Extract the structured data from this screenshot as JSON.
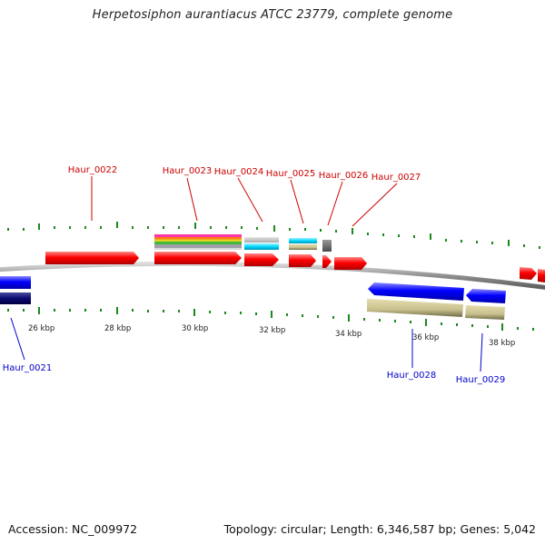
{
  "title": "Herpetosiphon aurantiacus ATCC 23779, complete genome",
  "footer": {
    "accession": "Accession: NC_009972",
    "summary": "Topology: circular; Length: 6,346,587 bp; Genes: 5,042"
  },
  "colors": {
    "forward_gene": "#ff0000",
    "reverse_gene": "#0000ff",
    "tick": "#1a8a1a",
    "forward_label": "#cc0000",
    "reverse_label": "#0000cc",
    "backbone": "#8f8f8f",
    "khaki_feature": "#c8c08c",
    "cyan_feature": "#00d8ff",
    "gray_feature": "#bdbdbd",
    "dark_feature": "#6a6a6a"
  },
  "scale_labels": [
    "26 kbp",
    "28 kbp",
    "30 kbp",
    "32 kbp",
    "34 kbp",
    "36 kbp",
    "38 kbp"
  ],
  "forward_gene_labels": [
    "Haur_0022",
    "Haur_0023",
    "Haur_0024",
    "Haur_0025",
    "Haur_0026",
    "Haur_0027"
  ],
  "reverse_gene_labels": [
    "Haur_0021",
    "Haur_0028",
    "Haur_0029"
  ]
}
